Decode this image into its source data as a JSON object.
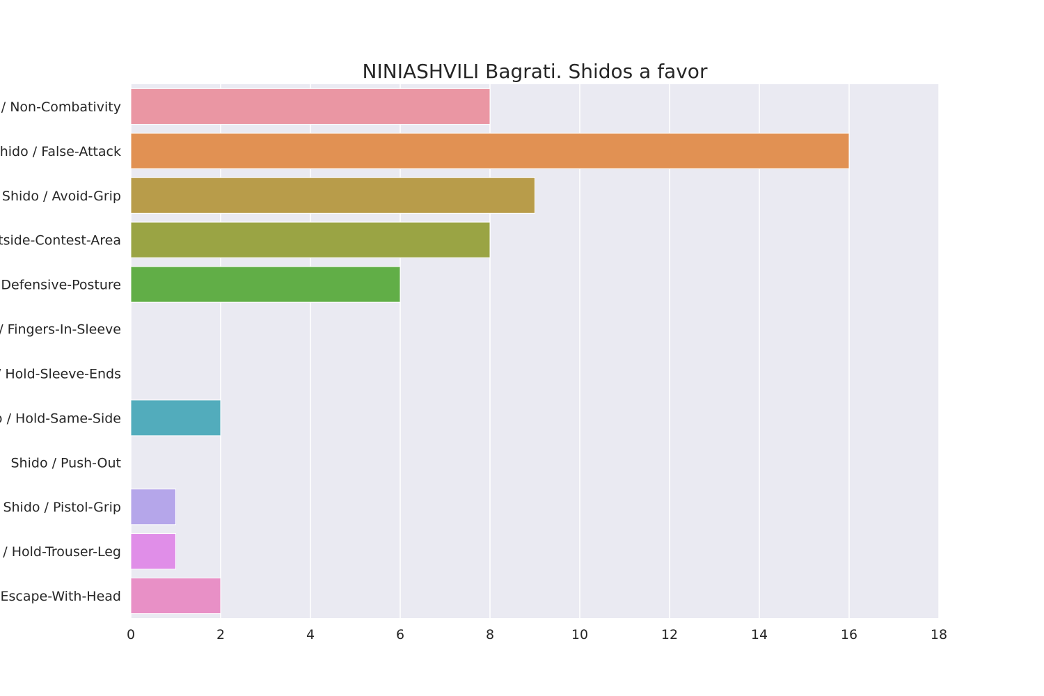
{
  "chart_data": {
    "type": "bar",
    "orientation": "horizontal",
    "title": "NINIASHVILI Bagrati. Shidos a favor",
    "xlabel": "",
    "ylabel": "",
    "categories": [
      "Shido / Non-Combativity",
      "Shido / False-Attack",
      "Shido / Avoid-Grip",
      "Shido / Outside-Contest-Area",
      "Shido / Defensive-Posture",
      "Shido / Fingers-In-Sleeve",
      "Shido / Hold-Sleeve-Ends",
      "Shido / Hold-Same-Side",
      "Shido / Push-Out",
      "Shido / Pistol-Grip",
      "Shido / Hold-Trouser-Leg",
      "Shido / Escape-With-Head"
    ],
    "values": [
      8,
      16,
      9,
      8,
      6,
      0,
      0,
      2,
      0,
      1,
      1,
      2
    ],
    "colors": [
      "#ea96a3",
      "#e19153",
      "#b89c4a",
      "#9aa444",
      "#61ae47",
      "#4bab8a",
      "#4eab9e",
      "#52acbc",
      "#5aa6d8",
      "#b5a6ea",
      "#e08ee8",
      "#e890c6"
    ],
    "xlim": [
      0,
      18
    ],
    "xticks": [
      "0",
      "2",
      "4",
      "6",
      "8",
      "10",
      "12",
      "14",
      "16",
      "18"
    ],
    "grid": true,
    "background": "#eaeaf2",
    "gridColor": "#ffffff",
    "legend": "none"
  }
}
